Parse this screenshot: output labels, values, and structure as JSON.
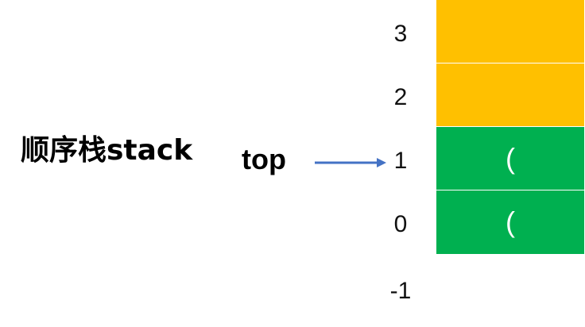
{
  "title": "顺序栈stack",
  "top_label": "top",
  "top_pointer_index": 1,
  "colors": {
    "filled": "#00B050",
    "empty": "#FFC000",
    "arrow": "#4472C4"
  },
  "stack": {
    "cells": [
      {
        "index": "3",
        "value": "",
        "state": "empty"
      },
      {
        "index": "2",
        "value": "",
        "state": "empty"
      },
      {
        "index": "1",
        "value": "(",
        "state": "filled"
      },
      {
        "index": "0",
        "value": "(",
        "state": "filled"
      }
    ],
    "bottom_index": "-1"
  }
}
